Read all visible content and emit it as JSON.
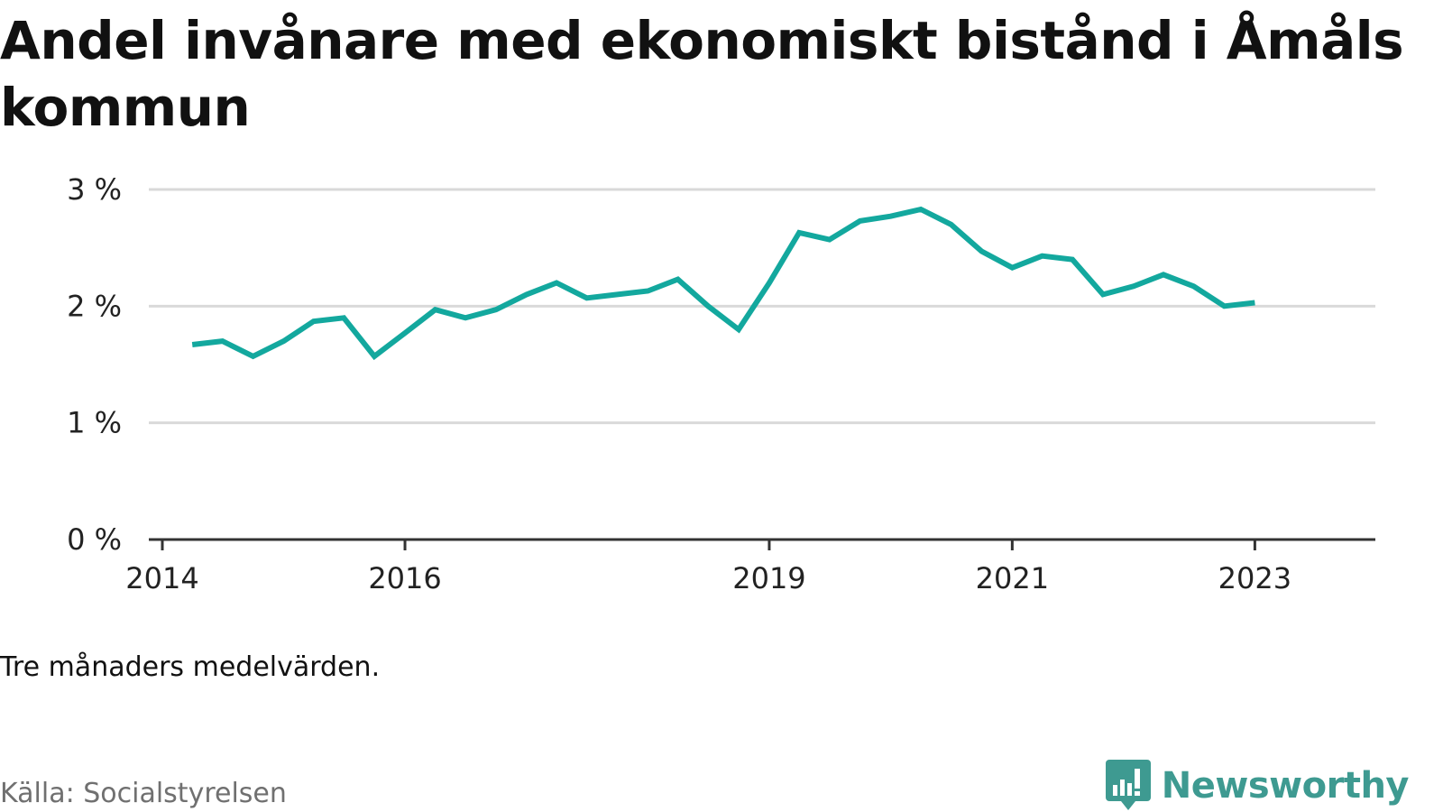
{
  "title": "Andel invånare med ekonomiskt bistånd i Åmåls kommun",
  "note": "Tre månaders medelvärden.",
  "source": "Källa: Socialstyrelsen",
  "brand": {
    "name": "Newsworthy",
    "icon": "newsworthy-logo-icon",
    "color": "#3e9a91"
  },
  "colors": {
    "line": "#13a89e",
    "grid": "#d9d9d9",
    "axis": "#333333"
  },
  "chart_data": {
    "type": "line",
    "title": "Andel invånare med ekonomiskt bistånd i Åmåls kommun",
    "xlabel": "",
    "ylabel": "",
    "ylim": [
      0,
      3
    ],
    "xlim": [
      "2014-01-01",
      "2023-10-01"
    ],
    "grid": true,
    "y_ticks": [
      0,
      1,
      2,
      3
    ],
    "y_tick_labels": [
      "0 %",
      "1 %",
      "2 %",
      "3 %"
    ],
    "x_ticks": [
      "2014-01-01",
      "2016-01-01",
      "2019-01-01",
      "2021-01-01",
      "2023-01-01"
    ],
    "x_tick_labels": [
      "2014",
      "2016",
      "2019",
      "2021",
      "2023"
    ],
    "series": [
      {
        "name": "",
        "color": "#13a89e",
        "x": [
          "2014-04-01",
          "2014-07-01",
          "2014-10-01",
          "2015-01-01",
          "2015-04-01",
          "2015-07-01",
          "2015-10-01",
          "2016-01-01",
          "2016-04-01",
          "2016-07-01",
          "2016-10-01",
          "2017-01-01",
          "2017-04-01",
          "2017-07-01",
          "2017-10-01",
          "2018-01-01",
          "2018-04-01",
          "2018-07-01",
          "2018-10-01",
          "2019-01-01",
          "2019-04-01",
          "2019-07-01",
          "2019-10-01",
          "2020-01-01",
          "2020-04-01",
          "2020-07-01",
          "2020-10-01",
          "2021-01-01",
          "2021-04-01",
          "2021-07-01",
          "2021-10-01",
          "2022-01-01",
          "2022-04-01",
          "2022-07-01",
          "2022-10-01",
          "2023-01-01"
        ],
        "values": [
          1.67,
          1.7,
          1.57,
          1.7,
          1.87,
          1.9,
          1.57,
          1.77,
          1.97,
          1.9,
          1.97,
          2.1,
          2.2,
          2.07,
          2.1,
          2.13,
          2.23,
          2.0,
          1.8,
          2.2,
          2.63,
          2.57,
          2.73,
          2.77,
          2.83,
          2.7,
          2.47,
          2.33,
          2.43,
          2.4,
          2.1,
          2.17,
          2.27,
          2.17,
          2.0,
          2.03
        ]
      }
    ]
  }
}
